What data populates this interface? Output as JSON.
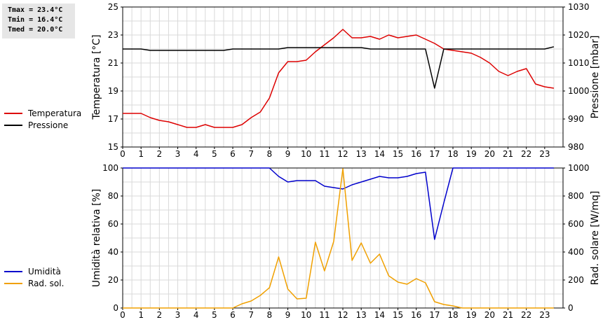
{
  "stats": {
    "tmax": "Tmax = 23.4°C",
    "tmin": "Tmin = 16.4°C",
    "tmed": "Tmed = 20.0°C"
  },
  "chart_data": [
    {
      "type": "line",
      "ylabel": "Temperatura [°C]",
      "y2label": "Pressione [mbar]",
      "xlim": [
        0,
        24
      ],
      "ylim": [
        15,
        25
      ],
      "y2lim": [
        980,
        1030
      ],
      "xticks": [
        "0",
        "1",
        "2",
        "3",
        "4",
        "5",
        "6",
        "7",
        "8",
        "9",
        "10",
        "11",
        "12",
        "13",
        "14",
        "15",
        "16",
        "17",
        "18",
        "19",
        "20",
        "21",
        "22",
        "23"
      ],
      "yticks": [
        "15",
        "17",
        "19",
        "21",
        "23",
        "25"
      ],
      "y2ticks": [
        "980",
        "990",
        "1000",
        "1010",
        "1020",
        "1030"
      ],
      "legend": [
        "Temperatura",
        "Pressione"
      ],
      "series": [
        {
          "name": "Temperatura",
          "axis": "left",
          "color": "#dd0000",
          "x": [
            0,
            0.5,
            1,
            1.5,
            2,
            2.5,
            3,
            3.5,
            4,
            4.5,
            5,
            5.5,
            6,
            6.5,
            7,
            7.5,
            8,
            8.5,
            9,
            9.5,
            10,
            10.5,
            11,
            11.5,
            12,
            12.5,
            13,
            13.5,
            14,
            14.5,
            15,
            15.5,
            16,
            16.5,
            17,
            17.5,
            18,
            18.5,
            19,
            19.5,
            20,
            20.5,
            21,
            21.5,
            22,
            22.5,
            23,
            23.5
          ],
          "values": [
            17.4,
            17.4,
            17.4,
            17.1,
            16.9,
            16.8,
            16.6,
            16.4,
            16.4,
            16.6,
            16.4,
            16.4,
            16.4,
            16.6,
            17.1,
            17.5,
            18.5,
            20.3,
            21.1,
            21.1,
            21.2,
            21.8,
            22.3,
            22.8,
            23.4,
            22.8,
            22.8,
            22.9,
            22.7,
            23.0,
            22.8,
            22.9,
            23.0,
            22.7,
            22.4,
            22.0,
            21.9,
            21.8,
            21.7,
            21.4,
            21.0,
            20.4,
            20.1,
            20.4,
            20.6,
            19.5,
            19.3,
            19.2
          ]
        },
        {
          "name": "Pressione",
          "axis": "right",
          "color": "#000000",
          "x": [
            0,
            0.5,
            1,
            1.5,
            2,
            2.5,
            3,
            3.5,
            4,
            4.5,
            5,
            5.5,
            6,
            6.5,
            7,
            7.5,
            8,
            8.5,
            9,
            9.5,
            10,
            10.5,
            11,
            11.5,
            12,
            12.5,
            13,
            13.5,
            14,
            14.5,
            15,
            15.5,
            16,
            16.5,
            17,
            17.5,
            18,
            18.5,
            19,
            19.5,
            20,
            20.5,
            21,
            21.5,
            22,
            22.5,
            23,
            23.5
          ],
          "values": [
            1015,
            1015,
            1015,
            1014.5,
            1014.5,
            1014.5,
            1014.5,
            1014.5,
            1014.5,
            1014.5,
            1014.5,
            1014.5,
            1015,
            1015,
            1015,
            1015,
            1015,
            1015,
            1015.5,
            1015.5,
            1015.5,
            1015.5,
            1015.5,
            1015.5,
            1015.5,
            1015.5,
            1015.5,
            1015,
            1015,
            1015,
            1015,
            1015,
            1015,
            1015,
            1001,
            1015,
            1015,
            1015,
            1015,
            1015,
            1015,
            1015,
            1015,
            1015,
            1015,
            1015,
            1015,
            1015.8
          ]
        }
      ]
    },
    {
      "type": "line",
      "ylabel": "Umidità relativa [%]",
      "y2label": "Rad. solare [W/mq]",
      "xlim": [
        0,
        24
      ],
      "ylim": [
        0,
        100
      ],
      "y2lim": [
        0,
        1000
      ],
      "xticks": [
        "0",
        "1",
        "2",
        "3",
        "4",
        "5",
        "6",
        "7",
        "8",
        "9",
        "10",
        "11",
        "12",
        "13",
        "14",
        "15",
        "16",
        "17",
        "18",
        "19",
        "20",
        "21",
        "22",
        "23"
      ],
      "yticks": [
        "0",
        "20",
        "40",
        "60",
        "80",
        "100"
      ],
      "y2ticks": [
        "0",
        "200",
        "400",
        "600",
        "800",
        "1000"
      ],
      "legend": [
        "Umidità",
        "Rad. sol."
      ],
      "series": [
        {
          "name": "Umidità",
          "axis": "left",
          "color": "#0000cc",
          "x": [
            0,
            0.5,
            1,
            1.5,
            2,
            2.5,
            3,
            3.5,
            4,
            4.5,
            5,
            5.5,
            6,
            6.5,
            7,
            7.5,
            8,
            8.5,
            9,
            9.5,
            10,
            10.5,
            11,
            11.5,
            12,
            12.5,
            13,
            13.5,
            14,
            14.5,
            15,
            15.5,
            16,
            16.5,
            17,
            17.5,
            18,
            18.5,
            19,
            19.5,
            20,
            20.5,
            21,
            21.5,
            22,
            22.5,
            23,
            23.5
          ],
          "values": [
            100,
            100,
            100,
            100,
            100,
            100,
            100,
            100,
            100,
            100,
            100,
            100,
            100,
            100,
            100,
            100,
            100,
            94,
            90,
            91,
            91,
            91,
            87,
            86,
            85,
            88,
            90,
            92,
            94,
            93,
            93,
            94,
            96,
            97,
            49,
            75,
            100,
            100,
            100,
            100,
            100,
            100,
            100,
            100,
            100,
            100,
            100,
            100
          ]
        },
        {
          "name": "Rad. sol.",
          "axis": "right",
          "color": "#f0a000",
          "x": [
            0,
            0.5,
            1,
            1.5,
            2,
            2.5,
            3,
            3.5,
            4,
            4.5,
            5,
            5.5,
            6,
            6.5,
            7,
            7.5,
            8,
            8.5,
            9,
            9.5,
            10,
            10.5,
            11,
            11.5,
            12,
            12.5,
            13,
            13.5,
            14,
            14.5,
            15,
            15.5,
            16,
            16.5,
            17,
            17.5,
            18,
            18.5,
            19,
            19.5,
            20,
            20.5,
            21,
            21.5,
            22,
            22.5,
            23,
            23.5
          ],
          "values": [
            0,
            0,
            0,
            0,
            0,
            0,
            0,
            0,
            0,
            0,
            0,
            0,
            0,
            30,
            50,
            90,
            145,
            365,
            135,
            65,
            70,
            470,
            265,
            475,
            995,
            340,
            465,
            320,
            385,
            230,
            185,
            170,
            210,
            180,
            45,
            25,
            15,
            0,
            0,
            0,
            0,
            0,
            0,
            0,
            0,
            0,
            0,
            0
          ]
        }
      ]
    }
  ]
}
